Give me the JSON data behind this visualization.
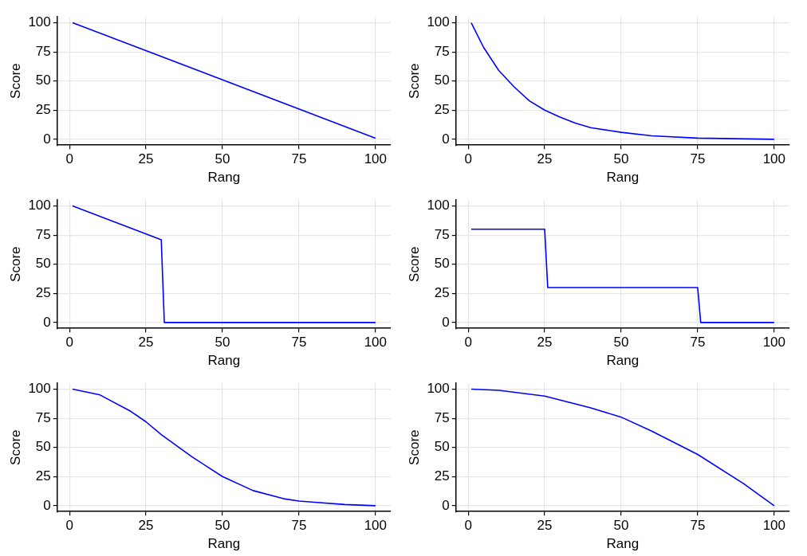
{
  "chart_data": [
    {
      "type": "line",
      "xlabel": "Rang",
      "ylabel": "Score",
      "xlim": [
        -4,
        105
      ],
      "ylim": [
        -5,
        105
      ],
      "xticks": [
        0,
        25,
        50,
        75,
        100
      ],
      "yticks": [
        0,
        25,
        50,
        75,
        100
      ],
      "grid": true,
      "legend": false,
      "marker": "none",
      "line_style": "solid",
      "series": [
        {
          "color": "#0000ff",
          "x": [
            1,
            100
          ],
          "values": [
            100,
            1
          ]
        }
      ]
    },
    {
      "type": "line",
      "xlabel": "Rang",
      "ylabel": "Score",
      "xlim": [
        -4,
        105
      ],
      "ylim": [
        -5,
        105
      ],
      "xticks": [
        0,
        25,
        50,
        75,
        100
      ],
      "yticks": [
        0,
        25,
        50,
        75,
        100
      ],
      "grid": true,
      "legend": false,
      "marker": "none",
      "line_style": "solid",
      "series": [
        {
          "color": "#0000ff",
          "x": [
            1,
            5,
            10,
            15,
            20,
            25,
            30,
            35,
            40,
            50,
            60,
            75,
            100
          ],
          "values": [
            100,
            79,
            59,
            45,
            33,
            25,
            19,
            14,
            10,
            6,
            3,
            1,
            0
          ]
        }
      ]
    },
    {
      "type": "line",
      "xlabel": "Rang",
      "ylabel": "Score",
      "xlim": [
        -4,
        105
      ],
      "ylim": [
        -5,
        105
      ],
      "xticks": [
        0,
        25,
        50,
        75,
        100
      ],
      "yticks": [
        0,
        25,
        50,
        75,
        100
      ],
      "grid": true,
      "legend": false,
      "marker": "none",
      "line_style": "solid",
      "series": [
        {
          "color": "#0000ff",
          "x": [
            1,
            30,
            31,
            100
          ],
          "values": [
            100,
            71,
            0,
            0
          ]
        }
      ]
    },
    {
      "type": "line",
      "xlabel": "Rang",
      "ylabel": "Score",
      "xlim": [
        -4,
        105
      ],
      "ylim": [
        -5,
        105
      ],
      "xticks": [
        0,
        25,
        50,
        75,
        100
      ],
      "yticks": [
        0,
        25,
        50,
        75,
        100
      ],
      "grid": true,
      "legend": false,
      "marker": "none",
      "line_style": "solid",
      "series": [
        {
          "color": "#0000ff",
          "x": [
            1,
            25,
            26,
            75,
            76,
            100
          ],
          "values": [
            80,
            80,
            30,
            30,
            0,
            0
          ]
        }
      ]
    },
    {
      "type": "line",
      "xlabel": "Rang",
      "ylabel": "Score",
      "xlim": [
        -4,
        105
      ],
      "ylim": [
        -5,
        105
      ],
      "xticks": [
        0,
        25,
        50,
        75,
        100
      ],
      "yticks": [
        0,
        25,
        50,
        75,
        100
      ],
      "grid": true,
      "legend": false,
      "marker": "none",
      "line_style": "solid",
      "series": [
        {
          "color": "#0000ff",
          "x": [
            1,
            10,
            20,
            25,
            30,
            40,
            50,
            60,
            70,
            75,
            80,
            90,
            100
          ],
          "values": [
            100,
            95,
            81,
            72,
            61,
            42,
            25,
            13,
            6,
            4,
            3,
            1,
            0
          ]
        }
      ]
    },
    {
      "type": "line",
      "xlabel": "Rang",
      "ylabel": "Score",
      "xlim": [
        -4,
        105
      ],
      "ylim": [
        -5,
        105
      ],
      "xticks": [
        0,
        25,
        50,
        75,
        100
      ],
      "yticks": [
        0,
        25,
        50,
        75,
        100
      ],
      "grid": true,
      "legend": false,
      "marker": "none",
      "line_style": "solid",
      "series": [
        {
          "color": "#0000ff",
          "x": [
            1,
            10,
            25,
            40,
            50,
            60,
            75,
            90,
            100
          ],
          "values": [
            100,
            99,
            94,
            84,
            76,
            64,
            44,
            19,
            0
          ]
        }
      ]
    }
  ]
}
